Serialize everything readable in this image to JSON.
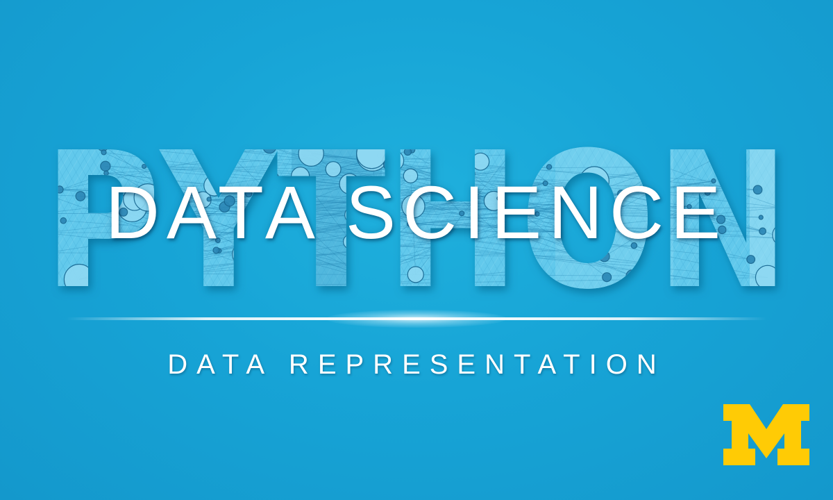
{
  "background_text": "PYTHON",
  "title": "DATA SCIENCE",
  "subtitle": "DATA REPRESENTATION",
  "logo": {
    "letter": "M",
    "color": "#FFCB05"
  },
  "colors": {
    "background": "#17a4d6",
    "letter_fill": "#5fc7ea",
    "title_text": "#ffffff"
  }
}
